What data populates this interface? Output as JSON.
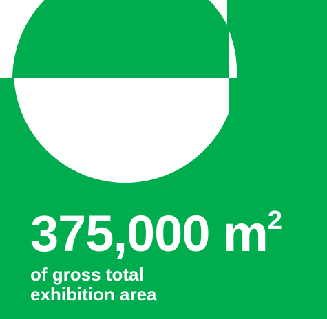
{
  "colors": {
    "background": "#00ad4e",
    "foreground": "#ffffff"
  },
  "logo": {
    "icon": "stylized-letter-e-logo-mark"
  },
  "stat": {
    "value": "375,000 m",
    "unit_superscript": "2",
    "caption_line1": "of gross total",
    "caption_line2": "exhibition area"
  }
}
